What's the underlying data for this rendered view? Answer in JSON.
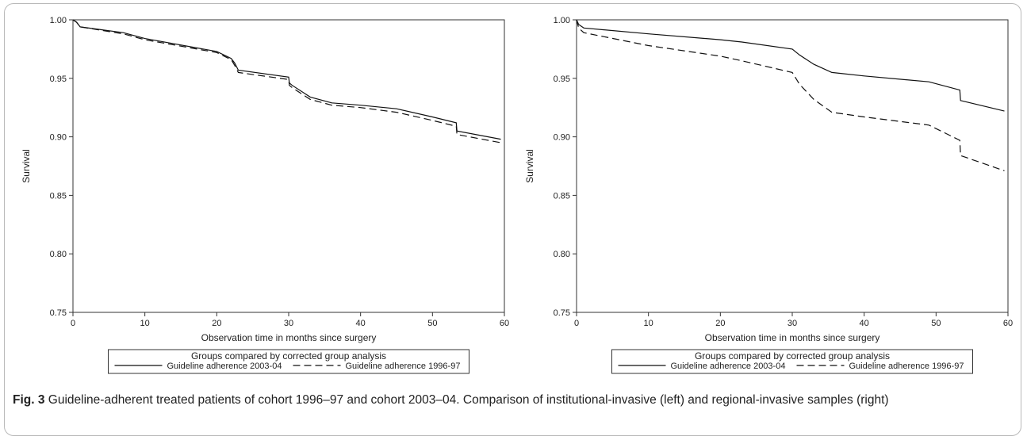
{
  "figure": {
    "label": "Fig. 3",
    "caption": "Guideline-adherent treated patients of cohort 1996–97 and cohort 2003–04. Comparison of institutional-invasive (left) and regional-invasive samples (right)"
  },
  "chart_data": [
    {
      "type": "line",
      "panel": "left",
      "xlabel": "Observation time in months since surgery",
      "ylabel": "Survival",
      "xlim": [
        0,
        60
      ],
      "ylim": [
        0.75,
        1.0
      ],
      "xticks": [
        "0",
        "10",
        "20",
        "30",
        "40",
        "50",
        "60"
      ],
      "yticks": [
        "0.75",
        "0.80",
        "0.85",
        "0.90",
        "0.95",
        "1.00"
      ],
      "grid": false,
      "legend": {
        "title": "Groups compared by corrected group analysis",
        "position": "bottom",
        "entries": [
          "Guideline adherence 2003-04",
          "Guideline adherence 1996-97"
        ]
      },
      "series": [
        {
          "name": "Guideline adherence 2003-04",
          "style": "solid",
          "x": [
            0,
            0.5,
            1,
            7,
            10,
            20,
            22,
            22.5,
            23,
            30,
            30.1,
            30.5,
            33,
            36,
            40,
            45,
            50,
            53.3,
            53.4,
            59.5
          ],
          "y": [
            1.0,
            0.998,
            0.994,
            0.989,
            0.984,
            0.973,
            0.967,
            0.963,
            0.957,
            0.951,
            0.946,
            0.944,
            0.934,
            0.929,
            0.927,
            0.924,
            0.917,
            0.912,
            0.905,
            0.898
          ]
        },
        {
          "name": "Guideline adherence 1996-97",
          "style": "dashed",
          "x": [
            0,
            0.5,
            1,
            7,
            10,
            20,
            22,
            22.5,
            23,
            30,
            30.1,
            30.5,
            33,
            36,
            40,
            45,
            50,
            53.3,
            53.4,
            59.5
          ],
          "y": [
            1.0,
            0.998,
            0.994,
            0.988,
            0.983,
            0.972,
            0.966,
            0.961,
            0.955,
            0.949,
            0.944,
            0.942,
            0.932,
            0.927,
            0.925,
            0.921,
            0.914,
            0.909,
            0.902,
            0.895
          ]
        }
      ]
    },
    {
      "type": "line",
      "panel": "right",
      "xlabel": "Observation time in months since surgery",
      "ylabel": "Survival",
      "xlim": [
        0,
        60
      ],
      "ylim": [
        0.75,
        1.0
      ],
      "xticks": [
        "0",
        "10",
        "20",
        "30",
        "40",
        "50",
        "60"
      ],
      "yticks": [
        "0.75",
        "0.80",
        "0.85",
        "0.90",
        "0.95",
        "1.00"
      ],
      "grid": false,
      "legend": {
        "title": "Groups compared by corrected group analysis",
        "position": "bottom",
        "entries": [
          "Guideline adherence 2003-04",
          "Guideline adherence 1996-97"
        ]
      },
      "series": [
        {
          "name": "Guideline adherence 2003-04",
          "style": "solid",
          "x": [
            0,
            0.3,
            1,
            10,
            20,
            23,
            30,
            31,
            33,
            35.5,
            40,
            49,
            53.3,
            53.4,
            59.5
          ],
          "y": [
            1.0,
            0.996,
            0.993,
            0.988,
            0.983,
            0.981,
            0.975,
            0.97,
            0.962,
            0.955,
            0.952,
            0.947,
            0.94,
            0.931,
            0.922
          ]
        },
        {
          "name": "Guideline adherence 1996-97",
          "style": "dashed",
          "x": [
            0,
            0.3,
            1,
            10,
            20,
            23,
            30,
            31,
            33,
            35.5,
            40,
            49,
            53.3,
            53.4,
            59.5
          ],
          "y": [
            1.0,
            0.993,
            0.989,
            0.978,
            0.969,
            0.965,
            0.955,
            0.945,
            0.932,
            0.921,
            0.917,
            0.91,
            0.897,
            0.884,
            0.871
          ]
        }
      ]
    }
  ]
}
